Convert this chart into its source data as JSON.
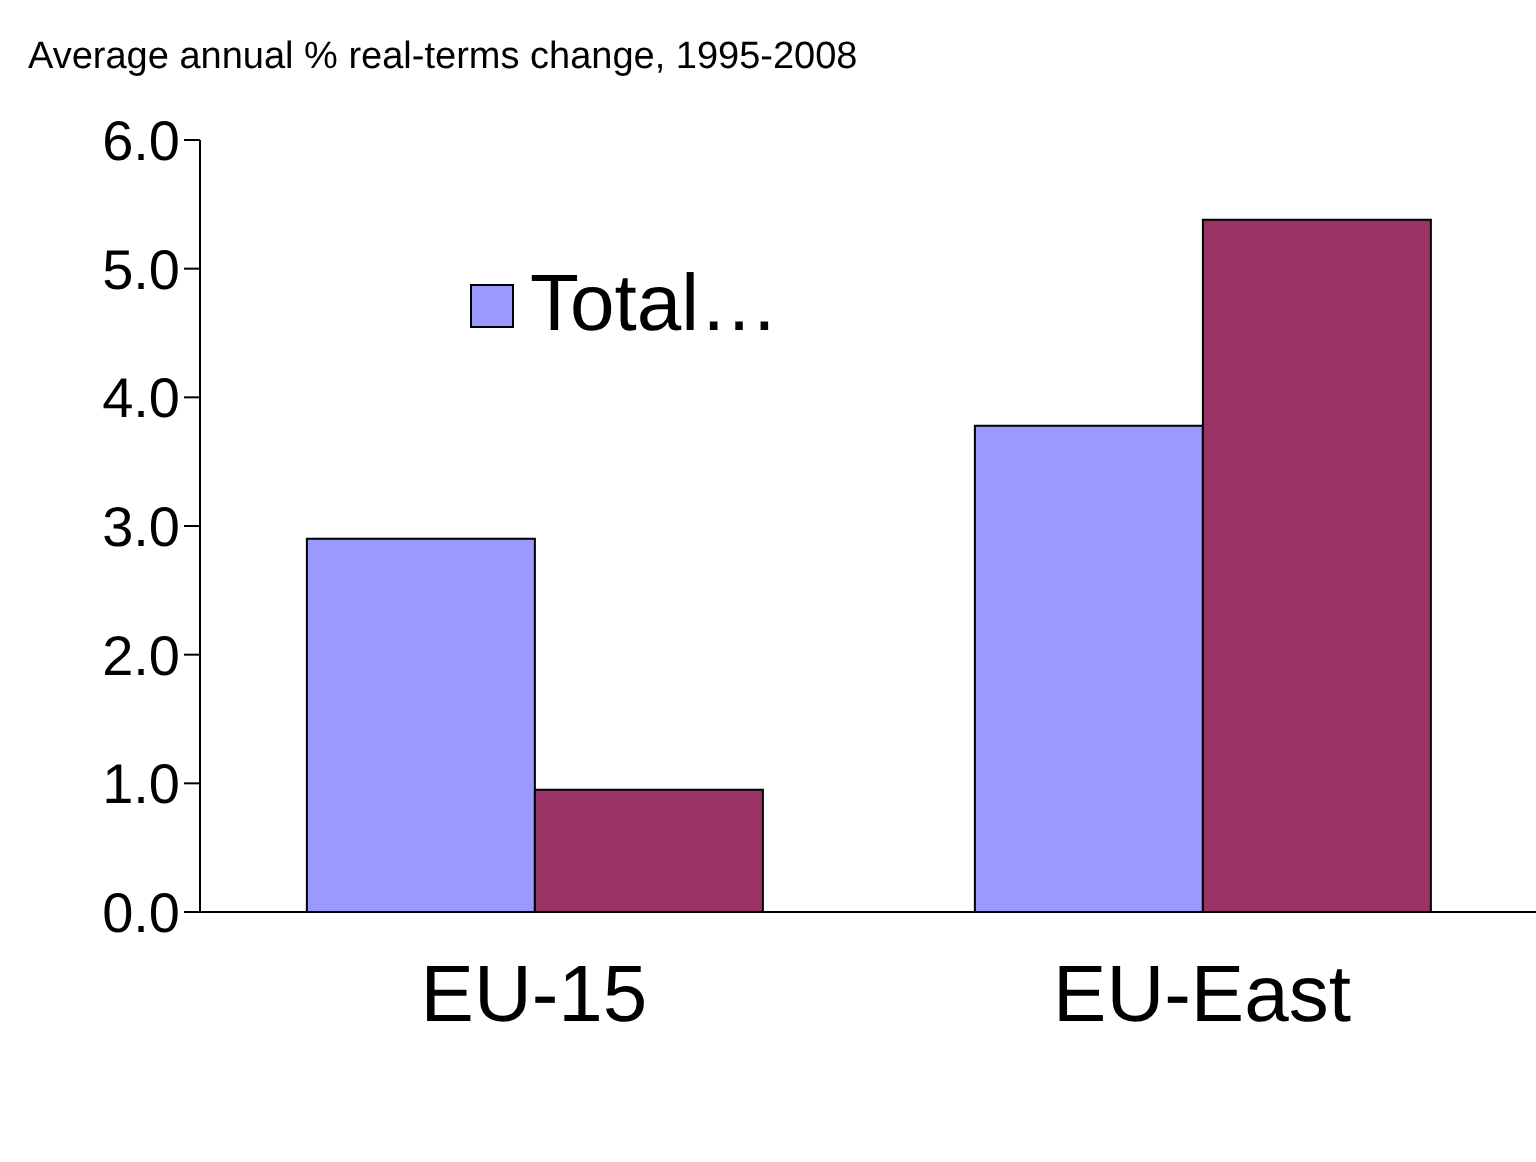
{
  "chart_data": {
    "type": "bar",
    "title": "Average annual % real-terms change, 1995-2008",
    "categories": [
      "EU-15",
      "EU-East"
    ],
    "series": [
      {
        "name": "Total…",
        "color": "#9999ff",
        "values": [
          2.9,
          3.78
        ]
      },
      {
        "color": "#993366",
        "values": [
          0.95,
          5.38
        ]
      }
    ],
    "ylim": [
      0,
      6
    ],
    "yticks": [
      {
        "value": 0,
        "label": "0.0"
      },
      {
        "value": 1,
        "label": "1.0"
      },
      {
        "value": 2,
        "label": "2.0"
      },
      {
        "value": 3,
        "label": "3.0"
      },
      {
        "value": 4,
        "label": "4.0"
      },
      {
        "value": 5,
        "label": "5.0"
      },
      {
        "value": 6,
        "label": "6.0"
      }
    ],
    "legend": "top left"
  }
}
